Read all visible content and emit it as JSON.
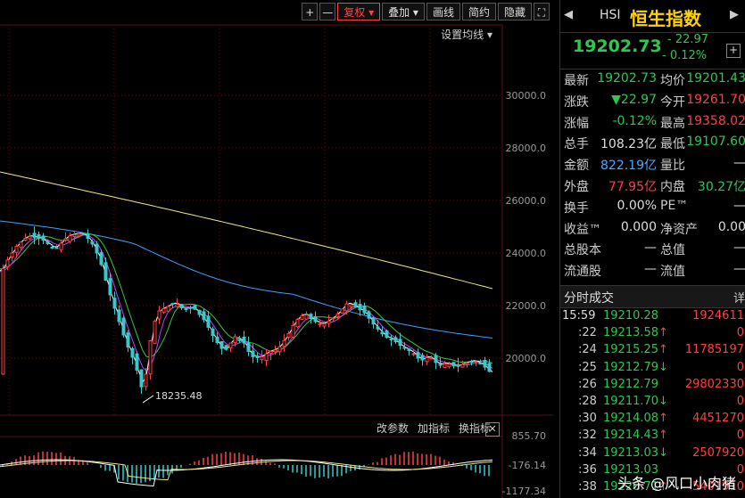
{
  "toolbar": {
    "plus": "+",
    "minus": "—",
    "fuquan": "复权",
    "diejia": "叠加",
    "huaxian": "画线",
    "jianyue": "简约",
    "yincang": "隐藏",
    "expand": "⛶"
  },
  "set_ma": "设置均线 ▾",
  "price_axis": [
    "30000.0",
    "28000.0",
    "26000.0",
    "24000.0",
    "22000.0",
    "20000.0"
  ],
  "min_label": "18235.48",
  "indicator_bar": {
    "params": "改参数",
    "add": "加指标",
    "switch": "换指标",
    "close": "✕"
  },
  "indicator_axis": [
    "855.70",
    "-176.14",
    "-1177.34"
  ],
  "quote": {
    "code": "HSI",
    "name": "恒生指数",
    "nav_left": "◀",
    "nav_right": "▶",
    "price": "19202.73",
    "change": "- 22.97",
    "change_pct": "- 0.12%",
    "add": "+",
    "rows": [
      {
        "l1": "最新",
        "v1": "19202.73",
        "c1": "g",
        "l2": "均价",
        "v2": "19201.43",
        "c2": "g"
      },
      {
        "l1": "涨跌",
        "v1": "▼22.97",
        "c1": "g",
        "l2": "今开",
        "v2": "19261.70",
        "c2": "r"
      },
      {
        "l1": "涨幅",
        "v1": "-0.12%",
        "c1": "g",
        "l2": "最高",
        "v2": "19358.02",
        "c2": "r"
      },
      {
        "l1": "总手",
        "v1": "108.23亿",
        "c1": "w",
        "l2": "最低",
        "v2": "19107.60",
        "c2": "g"
      },
      {
        "l1": "金额",
        "v1": "822.19亿",
        "c1": "b",
        "l2": "量比",
        "v2": "—",
        "c2": "w"
      },
      {
        "l1": "外盘",
        "v1": "77.95亿",
        "c1": "r",
        "l2": "内盘",
        "v2": "30.27亿",
        "c2": "g"
      },
      {
        "l1": "换手",
        "v1": "0.00%",
        "c1": "w",
        "l2": "PE™",
        "v2": "—",
        "c2": "w"
      },
      {
        "l1": "收益™",
        "v1": "0.000",
        "c1": "w",
        "l2": "净资产",
        "v2": "0.00",
        "c2": "w"
      },
      {
        "l1": "总股本",
        "v1": "—",
        "c1": "w",
        "l2": "总值",
        "v2": "—",
        "c2": "w"
      },
      {
        "l1": "流通股",
        "v1": "—",
        "c1": "w",
        "l2": "流值",
        "v2": "—",
        "c2": "w"
      }
    ]
  },
  "ticks": {
    "title": "分时成交",
    "detail": "详",
    "rows": [
      {
        "t": "15:59",
        "p": "19210.28",
        "pc": "g",
        "arrow": "",
        "v": "1924611",
        "vc": "r"
      },
      {
        "t": ":22",
        "p": "19213.58",
        "pc": "g",
        "arrow": "↑",
        "ac": "r",
        "v": "0",
        "vc": "r"
      },
      {
        "t": ":24",
        "p": "19215.25",
        "pc": "g",
        "arrow": "↑",
        "ac": "r",
        "v": "11785197",
        "vc": "r"
      },
      {
        "t": ":25",
        "p": "19212.79",
        "pc": "g",
        "arrow": "↓",
        "ac": "g",
        "v": "0",
        "vc": "r"
      },
      {
        "t": ":26",
        "p": "19212.79",
        "pc": "g",
        "arrow": "",
        "v": "29802330",
        "vc": "r"
      },
      {
        "t": ":28",
        "p": "19211.70",
        "pc": "g",
        "arrow": "↓",
        "ac": "g",
        "v": "0",
        "vc": "r"
      },
      {
        "t": ":30",
        "p": "19214.08",
        "pc": "g",
        "arrow": "↑",
        "ac": "r",
        "v": "4451270",
        "vc": "r"
      },
      {
        "t": ":32",
        "p": "19214.43",
        "pc": "g",
        "arrow": "↑",
        "ac": "r",
        "v": "0",
        "vc": "r"
      },
      {
        "t": ":34",
        "p": "19213.03",
        "pc": "g",
        "arrow": "↓",
        "ac": "g",
        "v": "2507920",
        "vc": "r"
      },
      {
        "t": ":36",
        "p": "19213.03",
        "pc": "g",
        "arrow": "",
        "v": "0",
        "vc": "r"
      },
      {
        "t": ":38",
        "p": "19220.71",
        "pc": "g",
        "arrow": "↑",
        "ac": "r",
        "v": "5401910",
        "vc": "r"
      }
    ]
  },
  "watermark": "头条 @风口小肉猪",
  "colors": {
    "up": "#ff4040",
    "down": "#2ec850",
    "ma_yellow": "#f0e68c",
    "ma_blue": "#40a0ff",
    "ma_green": "#3cc83c",
    "ma_purple": "#c040ff",
    "ma_white": "#ffffff"
  }
}
